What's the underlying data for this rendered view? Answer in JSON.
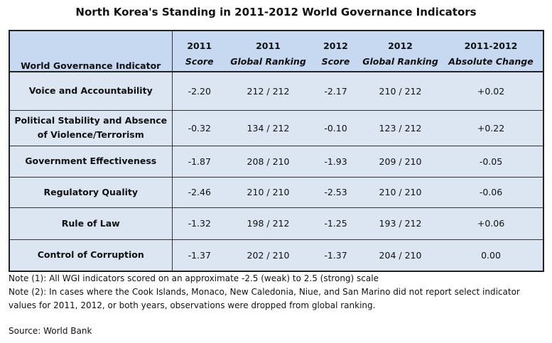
{
  "title": "North Korea's Standing in 2011-2012 World Governance Indicators",
  "header": {
    "indicator": "World Governance Indicator",
    "columns": [
      {
        "year": "2011",
        "label": "Score"
      },
      {
        "year": "2011",
        "label": "Global Ranking"
      },
      {
        "year": "2012",
        "label": "Score"
      },
      {
        "year": "2012",
        "label": "Global Ranking"
      },
      {
        "year": "2011-2012",
        "label": "Absolute Change"
      }
    ]
  },
  "rows": [
    {
      "indicator": "Voice and Accountability",
      "cells": [
        "-2.20",
        "212 / 212",
        "-2.17",
        "210 / 212",
        "+0.02"
      ]
    },
    {
      "indicator": "Political Stability and Absence of Violence/Terrorism",
      "cells": [
        "-0.32",
        "134 / 212",
        "-0.10",
        "123 / 212",
        "+0.22"
      ]
    },
    {
      "indicator": "Government Effectiveness",
      "cells": [
        "-1.87",
        "208 / 210",
        "-1.93",
        "209 / 210",
        "-0.05"
      ]
    },
    {
      "indicator": "Regulatory Quality",
      "cells": [
        "-2.46",
        "210 / 210",
        "-2.53",
        "210 / 210",
        "-0.06"
      ]
    },
    {
      "indicator": "Rule of Law",
      "cells": [
        "-1.32",
        "198 / 212",
        "-1.25",
        "193 / 212",
        "+0.06"
      ]
    },
    {
      "indicator": "Control of Corruption",
      "cells": [
        "-1.37",
        "202 / 210",
        "-1.37",
        "204 / 210",
        "0.00"
      ]
    }
  ],
  "notes": [
    "Note (1): All WGI indicators scored on an approximate -2.5 (weak) to 2.5 (strong) scale",
    "Note (2): In cases where the Cook Islands, Monaco, New Caledonia, Niue, and San Marino did not report select indicator values for 2011, 2012, or both years, observations were dropped from global ranking."
  ],
  "source": "Source: World Bank"
}
